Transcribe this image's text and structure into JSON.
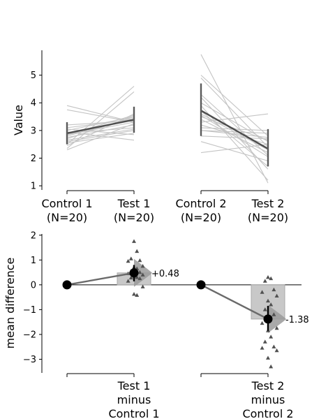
{
  "chart_data": [
    {
      "type": "line",
      "subtype": "paired-slopegraph",
      "ylabel": "Value",
      "ylim": [
        0.85,
        5.9
      ],
      "yticks": [
        1,
        2,
        3,
        4,
        5
      ],
      "groups": [
        {
          "categories": [
            "Control 1\n(N=20)",
            "Test 1\n(N=20)"
          ],
          "pairs": [
            [
              2.9,
              3.1
            ],
            [
              2.8,
              3.45
            ],
            [
              3.05,
              2.85
            ],
            [
              2.7,
              3.5
            ],
            [
              3.9,
              3.3
            ],
            [
              3.75,
              3.3
            ],
            [
              2.5,
              4.6
            ],
            [
              2.35,
              4.4
            ],
            [
              2.6,
              3.0
            ],
            [
              2.95,
              2.65
            ],
            [
              3.1,
              3.4
            ],
            [
              2.65,
              3.05
            ],
            [
              2.75,
              3.2
            ],
            [
              2.85,
              3.55
            ],
            [
              2.3,
              3.25
            ],
            [
              2.55,
              2.9
            ],
            [
              3.0,
              3.5
            ],
            [
              2.45,
              3.6
            ],
            [
              3.2,
              3.35
            ],
            [
              2.85,
              3.3
            ]
          ],
          "means": [
            2.9,
            3.39
          ],
          "ci": [
            [
              2.5,
              3.3
            ],
            [
              2.92,
              3.86
            ]
          ]
        },
        {
          "categories": [
            "Control 2\n(N=20)",
            "Test 2\n(N=20)"
          ],
          "pairs": [
            [
              3.7,
              1.7
            ],
            [
              5.0,
              2.8
            ],
            [
              5.75,
              1.1
            ],
            [
              4.9,
              2.4
            ],
            [
              4.3,
              2.1
            ],
            [
              4.2,
              1.6
            ],
            [
              3.5,
              2.65
            ],
            [
              3.3,
              3.6
            ],
            [
              3.4,
              2.2
            ],
            [
              3.2,
              2.5
            ],
            [
              3.1,
              3.0
            ],
            [
              3.0,
              2.9
            ],
            [
              2.8,
              2.7
            ],
            [
              3.6,
              2.3
            ],
            [
              2.2,
              2.5
            ],
            [
              3.9,
              1.2
            ],
            [
              4.0,
              2.6
            ],
            [
              2.6,
              1.9
            ],
            [
              3.0,
              2.75
            ],
            [
              3.55,
              2.05
            ]
          ],
          "means": [
            3.72,
            2.34
          ],
          "ci": [
            [
              2.8,
              4.7
            ],
            [
              1.7,
              3.05
            ]
          ]
        }
      ]
    },
    {
      "type": "scatter",
      "subtype": "contrast-estimation",
      "ylabel": "mean difference",
      "ylim": [
        -3.55,
        2.05
      ],
      "yticks": [
        -3,
        -2,
        -1,
        0,
        1,
        2
      ],
      "categories": [
        "Test 1\nminus\nControl 1",
        "Test 2\nminus\nControl 2"
      ],
      "contrasts": [
        {
          "control_mean": 0,
          "mean_difference": 0.48,
          "label": "+0.48",
          "ci": [
            0.14,
            0.8
          ],
          "bootstrap_points": [
            1.75,
            1.35,
            1.05,
            0.98,
            0.95,
            0.75,
            0.7,
            0.65,
            0.55,
            0.5,
            0.45,
            0.4,
            0.35,
            0.3,
            0.28,
            0.25,
            0.15,
            -0.08,
            -0.38,
            -0.42
          ]
        },
        {
          "control_mean": 0,
          "mean_difference": -1.38,
          "label": "-1.38",
          "ci": [
            -1.85,
            -0.85
          ],
          "bootstrap_points": [
            0.3,
            0.25,
            0.15,
            -0.2,
            -0.3,
            -0.45,
            -0.65,
            -0.8,
            -1.0,
            -1.2,
            -1.55,
            -1.75,
            -1.85,
            -2.1,
            -2.3,
            -2.5,
            -2.55,
            -2.65,
            -2.95,
            -3.3
          ]
        }
      ]
    }
  ]
}
